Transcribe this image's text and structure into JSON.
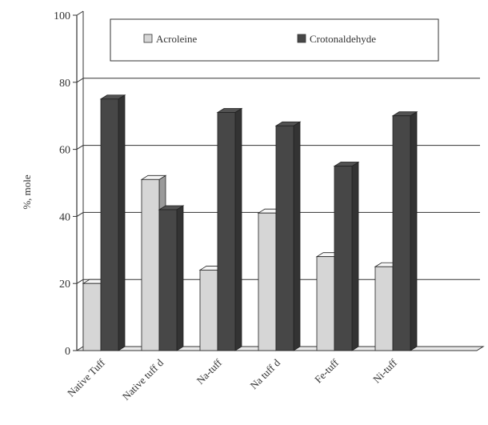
{
  "chart_data": {
    "type": "bar",
    "title": "",
    "xlabel": "",
    "ylabel": "%, mole",
    "ylim": [
      0,
      100
    ],
    "yticks": [
      0,
      20,
      40,
      60,
      80,
      100
    ],
    "grid": true,
    "legend_position": "top",
    "categories": [
      "Native Tuff",
      "Native tuff d",
      "Na-tuff",
      "Na tuff d",
      "Fe-tuff",
      "Ni-tuff"
    ],
    "series": [
      {
        "name": "Acroleine",
        "color": "#d6d6d6",
        "values": [
          20,
          51,
          24,
          41,
          28,
          25
        ]
      },
      {
        "name": "Crotonaldehyde",
        "color": "#474747",
        "values": [
          75,
          42,
          71,
          67,
          55,
          70
        ]
      }
    ]
  }
}
